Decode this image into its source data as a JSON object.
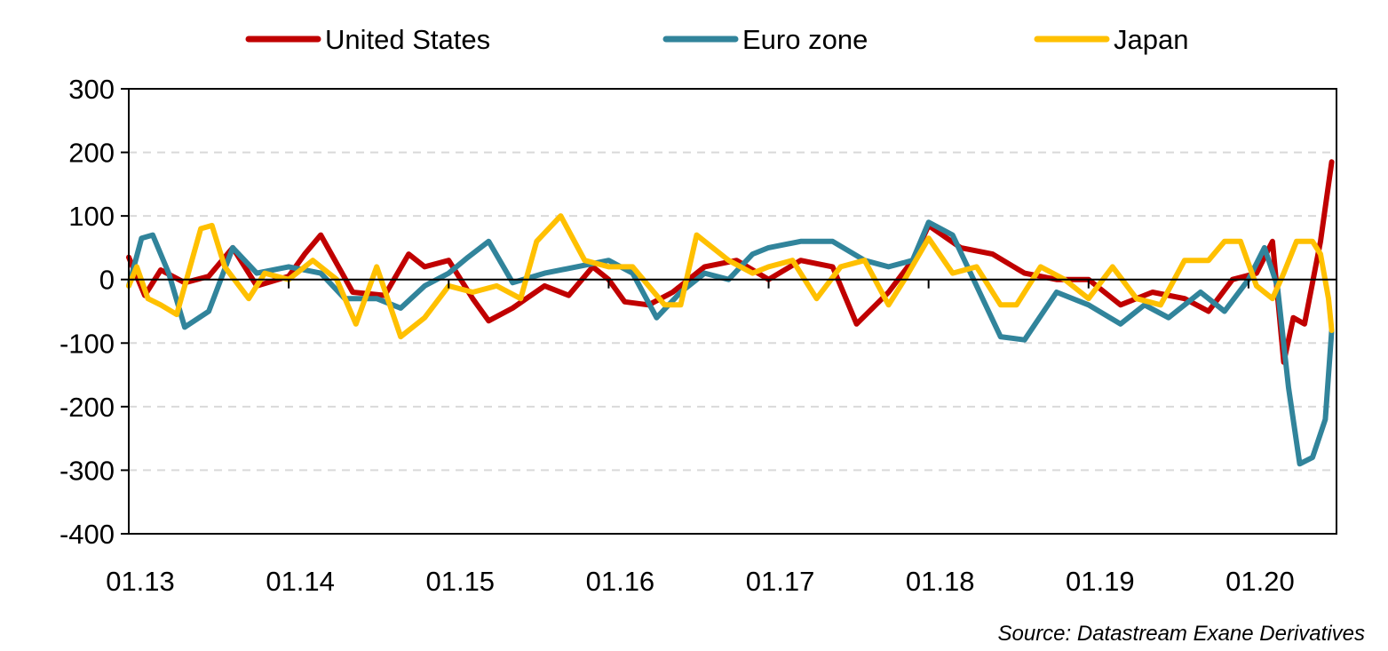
{
  "chart_data": {
    "type": "line",
    "source": "Source: Datastream Exane Derivatives",
    "x_tick_labels": [
      "01.13",
      "01.14",
      "01.15",
      "01.16",
      "01.17",
      "01.18",
      "01.19",
      "01.20"
    ],
    "x_tick_values": [
      2013.0,
      2014.0,
      2015.0,
      2016.0,
      2017.0,
      2018.0,
      2019.0,
      2020.0
    ],
    "xlim": [
      2013.0,
      2020.55
    ],
    "ylim": [
      -400,
      300
    ],
    "y_ticks": [
      -400,
      -300,
      -200,
      -100,
      0,
      100,
      200,
      300
    ],
    "grid": "horizontal dashed",
    "legend_position": "top",
    "series": [
      {
        "name": "United States",
        "color": "#C00000",
        "x": [
          2013.0,
          2013.1,
          2013.2,
          2013.35,
          2013.5,
          2013.65,
          2013.8,
          2014.0,
          2014.1,
          2014.2,
          2014.4,
          2014.6,
          2014.75,
          2014.85,
          2015.0,
          2015.15,
          2015.25,
          2015.4,
          2015.6,
          2015.75,
          2015.9,
          2016.0,
          2016.1,
          2016.25,
          2016.4,
          2016.6,
          2016.8,
          2017.0,
          2017.2,
          2017.4,
          2017.55,
          2017.75,
          2017.9,
          2018.0,
          2018.2,
          2018.4,
          2018.6,
          2018.8,
          2019.0,
          2019.2,
          2019.4,
          2019.6,
          2019.75,
          2019.9,
          2020.05,
          2020.15,
          2020.22,
          2020.28,
          2020.35,
          2020.45,
          2020.52
        ],
        "values": [
          35,
          -25,
          15,
          -5,
          5,
          50,
          -10,
          5,
          40,
          70,
          -20,
          -25,
          40,
          20,
          30,
          -30,
          -65,
          -45,
          -10,
          -25,
          20,
          0,
          -35,
          -40,
          -20,
          20,
          30,
          0,
          30,
          20,
          -70,
          -20,
          30,
          85,
          50,
          40,
          10,
          0,
          0,
          -40,
          -20,
          -30,
          -50,
          0,
          10,
          60,
          -130,
          -60,
          -70,
          60,
          185
        ]
      },
      {
        "name": "Euro zone",
        "color": "#31849B",
        "x": [
          2013.0,
          2013.08,
          2013.15,
          2013.25,
          2013.35,
          2013.5,
          2013.65,
          2013.8,
          2014.0,
          2014.2,
          2014.35,
          2014.55,
          2014.7,
          2014.85,
          2015.0,
          2015.12,
          2015.25,
          2015.4,
          2015.6,
          2015.8,
          2016.0,
          2016.15,
          2016.3,
          2016.45,
          2016.6,
          2016.75,
          2016.9,
          2017.0,
          2017.2,
          2017.4,
          2017.6,
          2017.75,
          2017.9,
          2018.0,
          2018.15,
          2018.3,
          2018.45,
          2018.6,
          2018.8,
          2019.0,
          2019.2,
          2019.35,
          2019.5,
          2019.7,
          2019.85,
          2020.0,
          2020.1,
          2020.18,
          2020.25,
          2020.32,
          2020.4,
          2020.48,
          2020.52
        ],
        "values": [
          -10,
          65,
          70,
          10,
          -75,
          -50,
          50,
          10,
          20,
          10,
          -30,
          -30,
          -45,
          -10,
          10,
          35,
          60,
          -5,
          10,
          20,
          30,
          10,
          -60,
          -20,
          10,
          0,
          40,
          50,
          60,
          60,
          30,
          20,
          30,
          90,
          70,
          -10,
          -90,
          -95,
          -20,
          -40,
          -70,
          -40,
          -60,
          -20,
          -50,
          0,
          50,
          -10,
          -170,
          -290,
          -280,
          -220,
          -80
        ]
      },
      {
        "name": "Japan",
        "color": "#FFC000",
        "x": [
          2013.0,
          2013.05,
          2013.12,
          2013.2,
          2013.3,
          2013.45,
          2013.52,
          2013.6,
          2013.75,
          2013.85,
          2014.0,
          2014.15,
          2014.3,
          2014.42,
          2014.55,
          2014.7,
          2014.85,
          2015.0,
          2015.15,
          2015.3,
          2015.45,
          2015.55,
          2015.7,
          2015.85,
          2016.0,
          2016.15,
          2016.35,
          2016.45,
          2016.55,
          2016.75,
          2016.9,
          2017.0,
          2017.15,
          2017.3,
          2017.45,
          2017.6,
          2017.75,
          2017.85,
          2018.0,
          2018.15,
          2018.3,
          2018.45,
          2018.55,
          2018.7,
          2018.85,
          2019.0,
          2019.15,
          2019.3,
          2019.45,
          2019.6,
          2019.75,
          2019.85,
          2019.95,
          2020.05,
          2020.15,
          2020.22,
          2020.3,
          2020.4,
          2020.45,
          2020.5,
          2020.52
        ],
        "values": [
          -10,
          20,
          -30,
          -40,
          -55,
          80,
          85,
          20,
          -30,
          10,
          0,
          30,
          0,
          -70,
          20,
          -90,
          -60,
          -10,
          -20,
          -10,
          -30,
          60,
          100,
          30,
          20,
          20,
          -40,
          -40,
          70,
          30,
          10,
          20,
          30,
          -30,
          20,
          30,
          -40,
          0,
          65,
          10,
          20,
          -40,
          -40,
          20,
          0,
          -30,
          20,
          -30,
          -40,
          30,
          30,
          60,
          60,
          -10,
          -30,
          10,
          60,
          60,
          40,
          -30,
          -80
        ]
      }
    ]
  }
}
